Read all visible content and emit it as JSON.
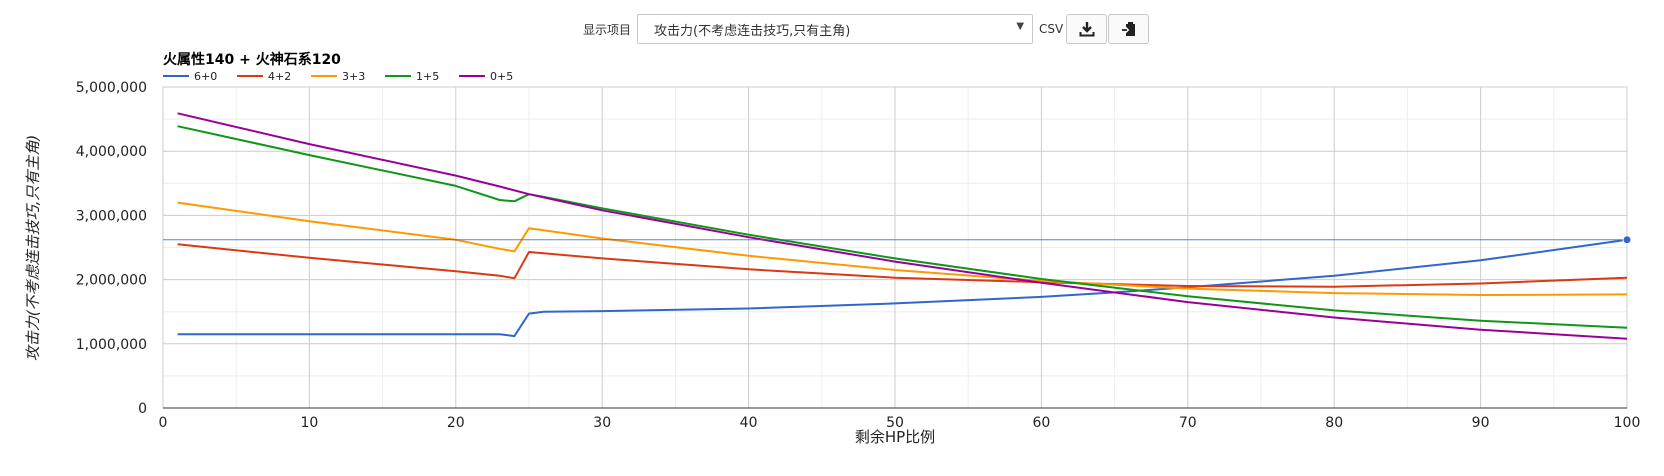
{
  "toolbar": {
    "label": "显示项目",
    "selected": "攻击力(不考虑连击技巧,只有主角)",
    "csv_label": "CSV",
    "icons": [
      "download-icon",
      "clipboard-icon"
    ]
  },
  "chart_data": {
    "type": "line",
    "title": "火属性140 + 火神石系120",
    "xlabel": "剩余HP比例",
    "ylabel": "攻击力(不考虑连击技巧,只有主角)",
    "xlim": [
      0,
      100
    ],
    "ylim": [
      0,
      5000000
    ],
    "x_ticks": [
      0,
      10,
      20,
      30,
      40,
      50,
      60,
      70,
      80,
      90,
      100
    ],
    "y_ticks": [
      0,
      1000000,
      2000000,
      3000000,
      4000000,
      5000000
    ],
    "y_tick_labels": [
      "0",
      "1,000,000",
      "2,000,000",
      "3,000,000",
      "4,000,000",
      "5,000,000"
    ],
    "grid": true,
    "legend_position": "top-left",
    "crosshair_y": 2620000,
    "series": [
      {
        "name": "6+0",
        "color": "#3366cc",
        "points": [
          [
            1,
            1150000
          ],
          [
            10,
            1150000
          ],
          [
            20,
            1150000
          ],
          [
            23,
            1150000
          ],
          [
            24,
            1120000
          ],
          [
            25,
            1470000
          ],
          [
            26,
            1500000
          ],
          [
            30,
            1510000
          ],
          [
            40,
            1550000
          ],
          [
            50,
            1630000
          ],
          [
            60,
            1730000
          ],
          [
            65,
            1800000
          ],
          [
            70,
            1880000
          ],
          [
            80,
            2060000
          ],
          [
            90,
            2300000
          ],
          [
            100,
            2620000
          ]
        ]
      },
      {
        "name": "4+2",
        "color": "#dc3912",
        "points": [
          [
            1,
            2550000
          ],
          [
            10,
            2340000
          ],
          [
            20,
            2130000
          ],
          [
            23,
            2060000
          ],
          [
            24,
            2020000
          ],
          [
            25,
            2430000
          ],
          [
            26,
            2410000
          ],
          [
            30,
            2330000
          ],
          [
            40,
            2160000
          ],
          [
            50,
            2030000
          ],
          [
            60,
            1960000
          ],
          [
            70,
            1900000
          ],
          [
            80,
            1890000
          ],
          [
            90,
            1940000
          ],
          [
            100,
            2030000
          ]
        ]
      },
      {
        "name": "3+3",
        "color": "#ff9900",
        "points": [
          [
            1,
            3200000
          ],
          [
            10,
            2910000
          ],
          [
            20,
            2620000
          ],
          [
            23,
            2480000
          ],
          [
            24,
            2440000
          ],
          [
            25,
            2800000
          ],
          [
            26,
            2770000
          ],
          [
            30,
            2640000
          ],
          [
            40,
            2370000
          ],
          [
            50,
            2150000
          ],
          [
            60,
            1980000
          ],
          [
            70,
            1860000
          ],
          [
            80,
            1790000
          ],
          [
            90,
            1760000
          ],
          [
            100,
            1770000
          ]
        ]
      },
      {
        "name": "1+5",
        "color": "#109618",
        "points": [
          [
            1,
            4390000
          ],
          [
            10,
            3940000
          ],
          [
            20,
            3460000
          ],
          [
            23,
            3240000
          ],
          [
            24,
            3220000
          ],
          [
            25,
            3330000
          ],
          [
            26,
            3290000
          ],
          [
            30,
            3110000
          ],
          [
            40,
            2700000
          ],
          [
            50,
            2330000
          ],
          [
            60,
            2010000
          ],
          [
            70,
            1740000
          ],
          [
            80,
            1520000
          ],
          [
            90,
            1360000
          ],
          [
            100,
            1250000
          ]
        ]
      },
      {
        "name": "0+5",
        "color": "#990099",
        "points": [
          [
            1,
            4590000
          ],
          [
            10,
            4110000
          ],
          [
            20,
            3620000
          ],
          [
            23,
            3450000
          ],
          [
            25,
            3330000
          ],
          [
            30,
            3080000
          ],
          [
            40,
            2660000
          ],
          [
            50,
            2280000
          ],
          [
            60,
            1950000
          ],
          [
            70,
            1650000
          ],
          [
            80,
            1410000
          ],
          [
            90,
            1220000
          ],
          [
            100,
            1080000
          ]
        ]
      }
    ]
  }
}
